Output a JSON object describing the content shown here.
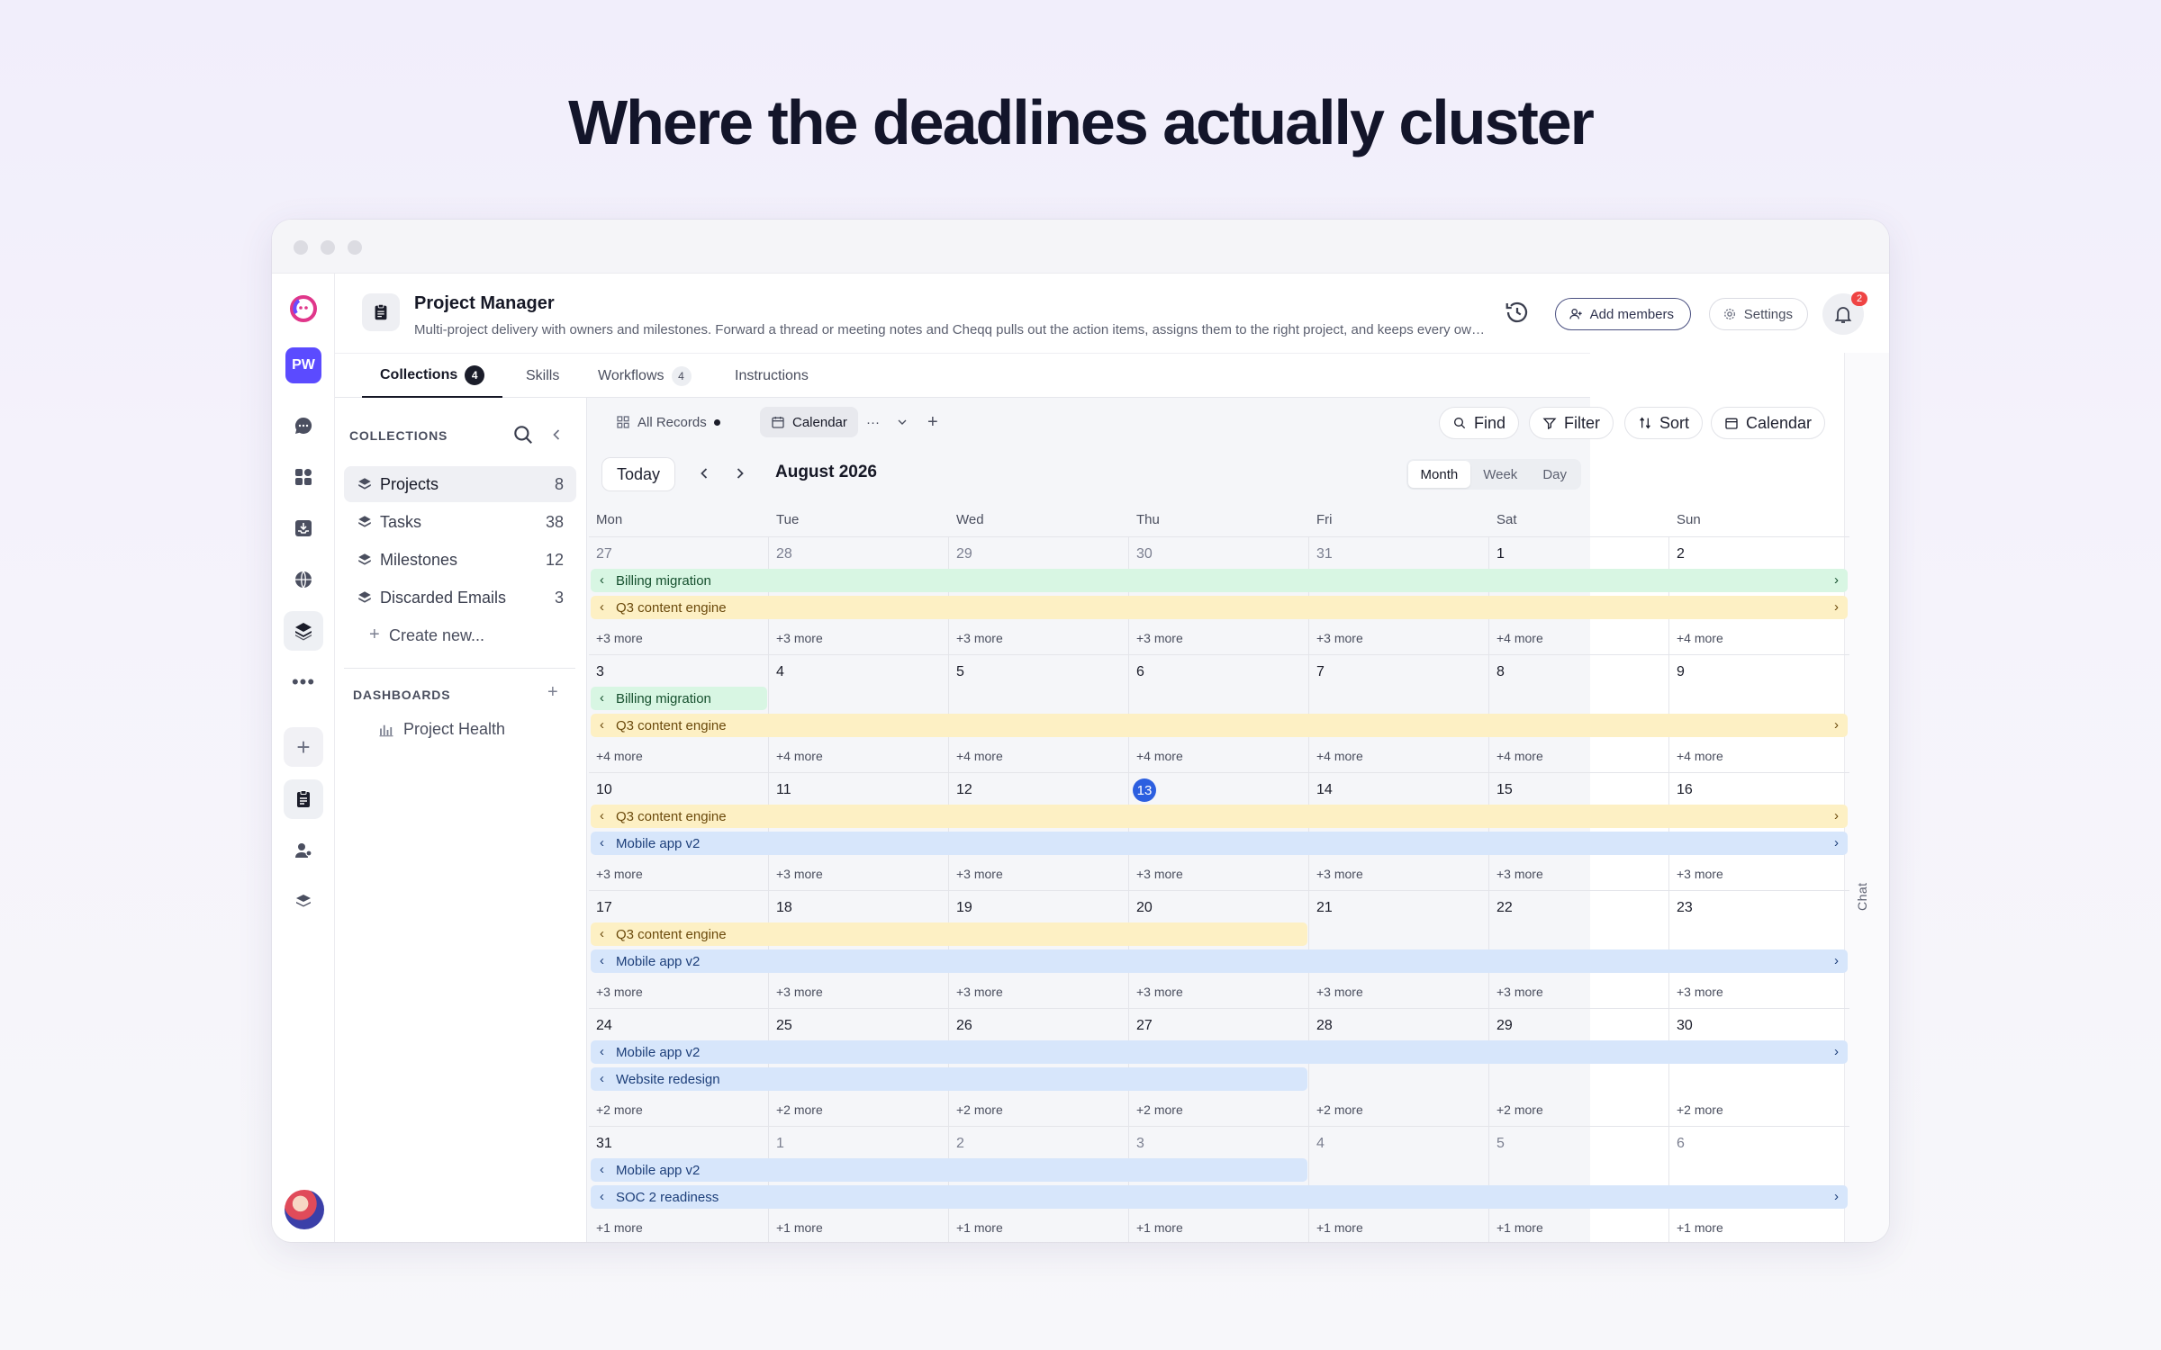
{
  "headline": "Where the deadlines actually cluster",
  "rail": {
    "workspace_initials": "PW",
    "icons": [
      "chat-icon",
      "apps-icon",
      "inbox-icon",
      "globe-icon",
      "layers-icon",
      "more-icon",
      "plus-icon",
      "clipboard-icon",
      "user-agent-icon",
      "stack-icon"
    ]
  },
  "header": {
    "title": "Project Manager",
    "subtitle": "Multi-project delivery with owners and milestones. Forward a thread or meeting notes and Cheqq pulls out the action items, assigns them to the right project, and keeps every owner and milestone current.",
    "add_members": "Add members",
    "settings": "Settings",
    "notifications": "2"
  },
  "tabs": [
    {
      "label": "Collections",
      "badge": "4"
    },
    {
      "label": "Skills"
    },
    {
      "label": "Workflows",
      "badge": "4"
    },
    {
      "label": "Instructions"
    }
  ],
  "chat_label": "Chat",
  "collections": {
    "heading": "COLLECTIONS",
    "items": [
      {
        "label": "Projects",
        "count": "8"
      },
      {
        "label": "Tasks",
        "count": "38"
      },
      {
        "label": "Milestones",
        "count": "12"
      },
      {
        "label": "Discarded Emails",
        "count": "3"
      }
    ],
    "create": "Create new...",
    "dashboards_heading": "DASHBOARDS",
    "dashboards": [
      {
        "label": "Project Health"
      }
    ]
  },
  "toolbar": {
    "views": [
      {
        "label": "All Records"
      },
      {
        "label": "Calendar"
      }
    ],
    "view_more": "···",
    "find": "Find",
    "filter": "Filter",
    "sort": "Sort",
    "calendar": "Calendar"
  },
  "calendar": {
    "today": "Today",
    "month": "August 2026",
    "modes": [
      "Month",
      "Week",
      "Day"
    ],
    "active_mode": "Month",
    "weekdays": [
      "Mon",
      "Tue",
      "Wed",
      "Thu",
      "Fri",
      "Sat",
      "Sun"
    ],
    "weeks": [
      {
        "days": [
          {
            "n": "27",
            "other": true
          },
          {
            "n": "28",
            "other": true
          },
          {
            "n": "29",
            "other": true
          },
          {
            "n": "30",
            "other": true
          },
          {
            "n": "31",
            "other": true
          },
          {
            "n": "1"
          },
          {
            "n": "2"
          }
        ],
        "more": [
          "+3 more",
          "+3 more",
          "+3 more",
          "+3 more",
          "+3 more",
          "+4 more",
          "+4 more"
        ],
        "bars": [
          {
            "label": "Billing migration",
            "color": "green",
            "start": 0,
            "span": 7,
            "cont_left": true,
            "cont_right": true
          },
          {
            "label": "Q3 content engine",
            "color": "yellow",
            "start": 0,
            "span": 7,
            "cont_left": true,
            "cont_right": true
          }
        ]
      },
      {
        "days": [
          {
            "n": "3"
          },
          {
            "n": "4"
          },
          {
            "n": "5"
          },
          {
            "n": "6"
          },
          {
            "n": "7"
          },
          {
            "n": "8"
          },
          {
            "n": "9"
          }
        ],
        "more": [
          "+4 more",
          "+4 more",
          "+4 more",
          "+4 more",
          "+4 more",
          "+4 more",
          "+4 more"
        ],
        "bars": [
          {
            "label": "Billing migration",
            "color": "green",
            "start": 0,
            "span": 1,
            "cont_left": true,
            "cont_right": false
          },
          {
            "label": "Q3 content engine",
            "color": "yellow",
            "start": 0,
            "span": 7,
            "cont_left": true,
            "cont_right": true
          }
        ]
      },
      {
        "days": [
          {
            "n": "10"
          },
          {
            "n": "11"
          },
          {
            "n": "12"
          },
          {
            "n": "13",
            "today": true
          },
          {
            "n": "14"
          },
          {
            "n": "15"
          },
          {
            "n": "16"
          }
        ],
        "more": [
          "+3 more",
          "+3 more",
          "+3 more",
          "+3 more",
          "+3 more",
          "+3 more",
          "+3 more"
        ],
        "bars": [
          {
            "label": "Q3 content engine",
            "color": "yellow",
            "start": 0,
            "span": 7,
            "cont_left": true,
            "cont_right": true
          },
          {
            "label": "Mobile app v2",
            "color": "blue",
            "start": 0,
            "span": 7,
            "cont_left": true,
            "cont_right": true
          }
        ]
      },
      {
        "days": [
          {
            "n": "17"
          },
          {
            "n": "18"
          },
          {
            "n": "19"
          },
          {
            "n": "20"
          },
          {
            "n": "21"
          },
          {
            "n": "22"
          },
          {
            "n": "23"
          }
        ],
        "more": [
          "+3 more",
          "+3 more",
          "+3 more",
          "+3 more",
          "+3 more",
          "+3 more",
          "+3 more"
        ],
        "bars": [
          {
            "label": "Q3 content engine",
            "color": "yellow",
            "start": 0,
            "span": 4,
            "cont_left": true,
            "cont_right": false
          },
          {
            "label": "Mobile app v2",
            "color": "blue",
            "start": 0,
            "span": 7,
            "cont_left": true,
            "cont_right": true
          }
        ]
      },
      {
        "days": [
          {
            "n": "24"
          },
          {
            "n": "25"
          },
          {
            "n": "26"
          },
          {
            "n": "27"
          },
          {
            "n": "28"
          },
          {
            "n": "29"
          },
          {
            "n": "30"
          }
        ],
        "more": [
          "+2 more",
          "+2 more",
          "+2 more",
          "+2 more",
          "+2 more",
          "+2 more",
          "+2 more"
        ],
        "bars": [
          {
            "label": "Mobile app v2",
            "color": "blue",
            "start": 0,
            "span": 7,
            "cont_left": true,
            "cont_right": true
          },
          {
            "label": "Website redesign",
            "color": "blue",
            "start": 0,
            "span": 4,
            "cont_left": true,
            "cont_right": false
          }
        ]
      },
      {
        "days": [
          {
            "n": "31"
          },
          {
            "n": "1",
            "other": true
          },
          {
            "n": "2",
            "other": true
          },
          {
            "n": "3",
            "other": true
          },
          {
            "n": "4",
            "other": true
          },
          {
            "n": "5",
            "other": true
          },
          {
            "n": "6",
            "other": true
          }
        ],
        "more": [
          "+1 more",
          "+1 more",
          "+1 more",
          "+1 more",
          "+1 more",
          "+1 more",
          "+1 more"
        ],
        "bars": [
          {
            "label": "Mobile app v2",
            "color": "blue",
            "start": 0,
            "span": 4,
            "cont_left": true,
            "cont_right": false
          },
          {
            "label": "SOC 2 readiness",
            "color": "blue",
            "start": 0,
            "span": 7,
            "cont_left": true,
            "cont_right": true
          }
        ]
      }
    ]
  }
}
